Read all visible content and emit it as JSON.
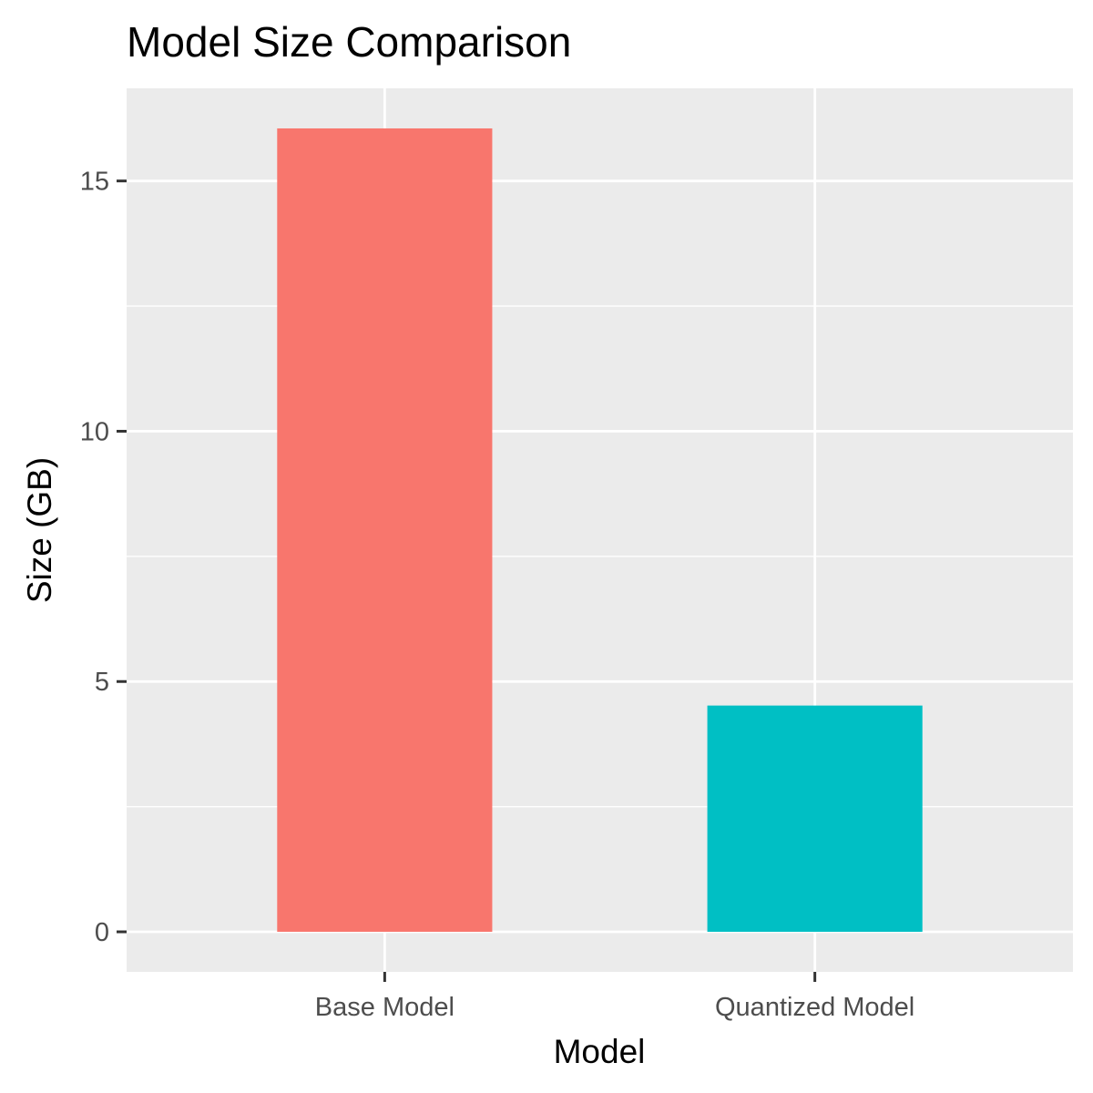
{
  "chart_data": {
    "type": "bar",
    "title": "Model Size Comparison",
    "xlabel": "Model",
    "ylabel": "Size (GB)",
    "categories": [
      "Base Model",
      "Quantized Model"
    ],
    "values": [
      16.05,
      4.52
    ],
    "colors": [
      "#F8766D",
      "#00BFC4"
    ],
    "ylim": [
      -0.8,
      16.85
    ],
    "yticks": [
      0,
      5,
      10,
      15
    ],
    "ytick_labels": [
      "0",
      "5",
      "10",
      "15"
    ],
    "grid": true,
    "legend": "none",
    "panel_color": "#EBEBEB",
    "grid_color": "#FFFFFF",
    "tick_color": "#333333"
  }
}
